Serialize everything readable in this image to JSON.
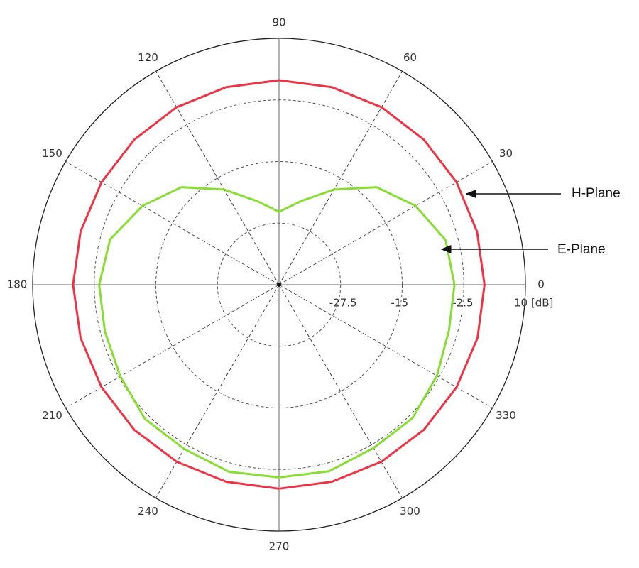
{
  "chart_data": {
    "type": "polar",
    "x": [
      0,
      15,
      30,
      45,
      60,
      75,
      90,
      105,
      120,
      135,
      150,
      165,
      180,
      195,
      210,
      225,
      240,
      255,
      270,
      285,
      300,
      315,
      330,
      345
    ],
    "series": [
      {
        "name": "H-Plane",
        "color": "#ee3344",
        "values": [
          1.7,
          1.6,
          1.6,
          1.6,
          1.6,
          1.5,
          1.5,
          1.5,
          1.6,
          1.6,
          1.6,
          1.7,
          1.8,
          1.7,
          1.6,
          1.6,
          1.5,
          1.4,
          1.4,
          1.4,
          1.5,
          1.6,
          1.6,
          1.7
        ]
      },
      {
        "name": "E-Plane",
        "color": "#88dd33",
        "values": [
          -4.4,
          -5.0,
          -8.0,
          -12.0,
          -17.7,
          -22.4,
          -25.2,
          -22.4,
          -17.7,
          -12.0,
          -8.0,
          -4.5,
          -3.5,
          -3.4,
          -2.8,
          -1.5,
          -1.5,
          -0.7,
          -0.9,
          -0.8,
          -1.7,
          -1.7,
          -3.0,
          -4.3
        ]
      }
    ],
    "rlim": [
      -40,
      10
    ],
    "rticks": [
      -27.5,
      -15,
      -2.5,
      {
        "value": 10,
        "label": "10 [dB]"
      }
    ],
    "thetaticks": [
      0,
      30,
      60,
      90,
      120,
      150,
      180,
      210,
      240,
      270,
      300,
      330
    ],
    "grid": true
  }
}
